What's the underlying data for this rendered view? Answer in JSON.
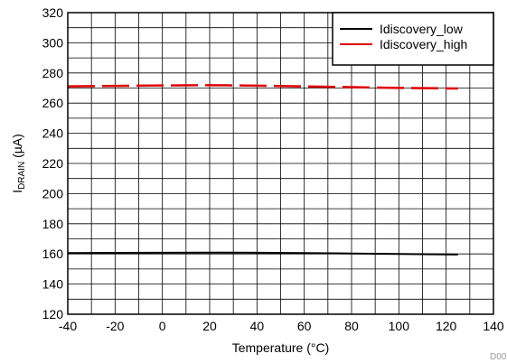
{
  "chart_data": {
    "type": "line",
    "xlabel": "Temperature (°C)",
    "ylabel_main": "I",
    "ylabel_sub": "DRAIN",
    "ylabel_unit": " (µA)",
    "xlim": [
      -40,
      140
    ],
    "ylim": [
      120,
      320
    ],
    "x_ticks": [
      -40,
      -20,
      0,
      20,
      40,
      60,
      80,
      100,
      120,
      140
    ],
    "y_ticks": [
      120,
      140,
      160,
      180,
      200,
      220,
      240,
      260,
      280,
      300,
      320
    ],
    "x_minor_step": 10,
    "y_minor_step": 10,
    "grid": true,
    "legend_position": "top-right",
    "series": [
      {
        "name": "Idiscovery_low",
        "color": "#000000",
        "style": "solid",
        "x": [
          -40,
          -20,
          0,
          20,
          40,
          60,
          80,
          100,
          125
        ],
        "y": [
          160.6,
          160.7,
          160.8,
          160.9,
          160.8,
          160.6,
          160.3,
          160.0,
          159.6
        ]
      },
      {
        "name": "Idiscovery_high",
        "color": "#e00000",
        "style": "dashed",
        "x": [
          -40,
          -20,
          0,
          20,
          40,
          60,
          80,
          100,
          125
        ],
        "y": [
          271.1,
          271.4,
          271.7,
          271.9,
          271.6,
          271.1,
          270.6,
          270.1,
          269.7
        ]
      }
    ],
    "corner_label": "D00"
  }
}
